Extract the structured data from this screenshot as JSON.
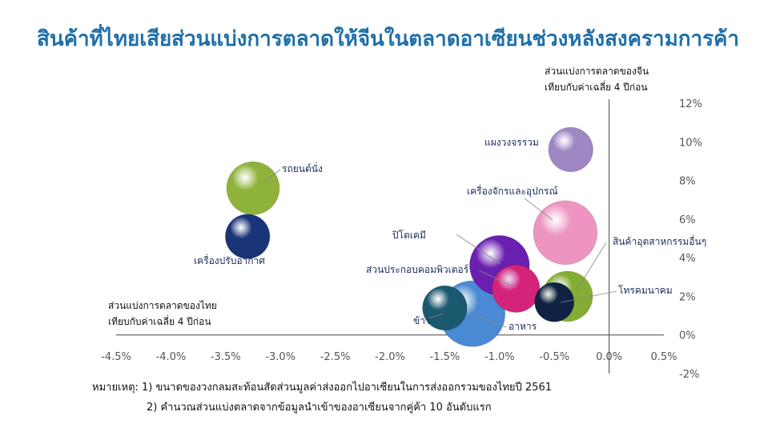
{
  "title": "สินค้าที่ไทยเสียส่วนแบ่งการตลาดให้จีนในตลาดอาเซียนช่วงหลังสงครามการค้า",
  "y_axis_caption": [
    "ส่วนแบ่งการตลาดของจีน",
    "เทียบกับค่าเฉลี่ย 4 ปีก่อน"
  ],
  "x_axis_caption": [
    "ส่วนแบ่งการตลาดของไทย",
    "เทียบกับค่าเฉลี่ย 4 ปีก่อน"
  ],
  "notes": {
    "note1": "หมายเหตุ: 1) ขนาดของวงกลมสะท้อนสัดส่วนมูลค่าส่งออกไปอาเซียนในการส่งออกรวมของไทยปี 2561",
    "note2": "2) คำนวณส่วนแบ่งตลาดจากข้อมูลนำเข้าของอาเซียนจากคู่ค้า 10 อันดับแรก"
  },
  "chart_data": {
    "type": "scatter",
    "x_ticks": [
      "-4.5%",
      "-4.0%",
      "-3.5%",
      "-3.0%",
      "-2.5%",
      "-2.0%",
      "-1.5%",
      "-1.0%",
      "-0.5%",
      "0.0%",
      "0.5%"
    ],
    "y_ticks": [
      "-2%",
      "0%",
      "2%",
      "4%",
      "6%",
      "8%",
      "10%",
      "12%"
    ],
    "xlim": [
      -4.5,
      0.5
    ],
    "ylim": [
      -2,
      12
    ],
    "x_unit": "%",
    "y_unit": "%",
    "points": [
      {
        "label": "แผงวงจรรวม",
        "x": -0.35,
        "y": 9.6,
        "size": 0.5,
        "color": "#9e87c2"
      },
      {
        "label": "รถยนต์นั่ง",
        "x": -3.25,
        "y": 7.6,
        "size": 0.8,
        "color": "#8fb33a"
      },
      {
        "label": "เครื่องปรับอากาศ",
        "x": -3.3,
        "y": 5.1,
        "size": 0.5,
        "color": "#1a3478"
      },
      {
        "label": "เครื่องจักรและอุปกรณ์",
        "x": -0.4,
        "y": 5.3,
        "size": 1.3,
        "color": "#ee94c0"
      },
      {
        "label": "ปิโตเคมี",
        "x": -1.0,
        "y": 3.6,
        "size": 1.1,
        "color": "#6a1fb0"
      },
      {
        "label": "ส่วนประกอบคอมพิวเตอร์",
        "x": -0.85,
        "y": 2.4,
        "size": 0.6,
        "color": "#d4247a"
      },
      {
        "label": "สินค้าอุตสาหกรรมอื่นๆ",
        "x": -0.38,
        "y": 2.0,
        "size": 0.7,
        "color": "#83ad35"
      },
      {
        "label": "โทรคมนาคม",
        "x": -0.5,
        "y": 1.7,
        "size": 0.35,
        "color": "#0f2244"
      },
      {
        "label": "อาหาร",
        "x": -1.25,
        "y": 1.1,
        "size": 1.4,
        "color": "#4a8ad4"
      },
      {
        "label": "ข้าว",
        "x": -1.5,
        "y": 1.4,
        "size": 0.5,
        "color": "#1b5a6e"
      }
    ]
  }
}
